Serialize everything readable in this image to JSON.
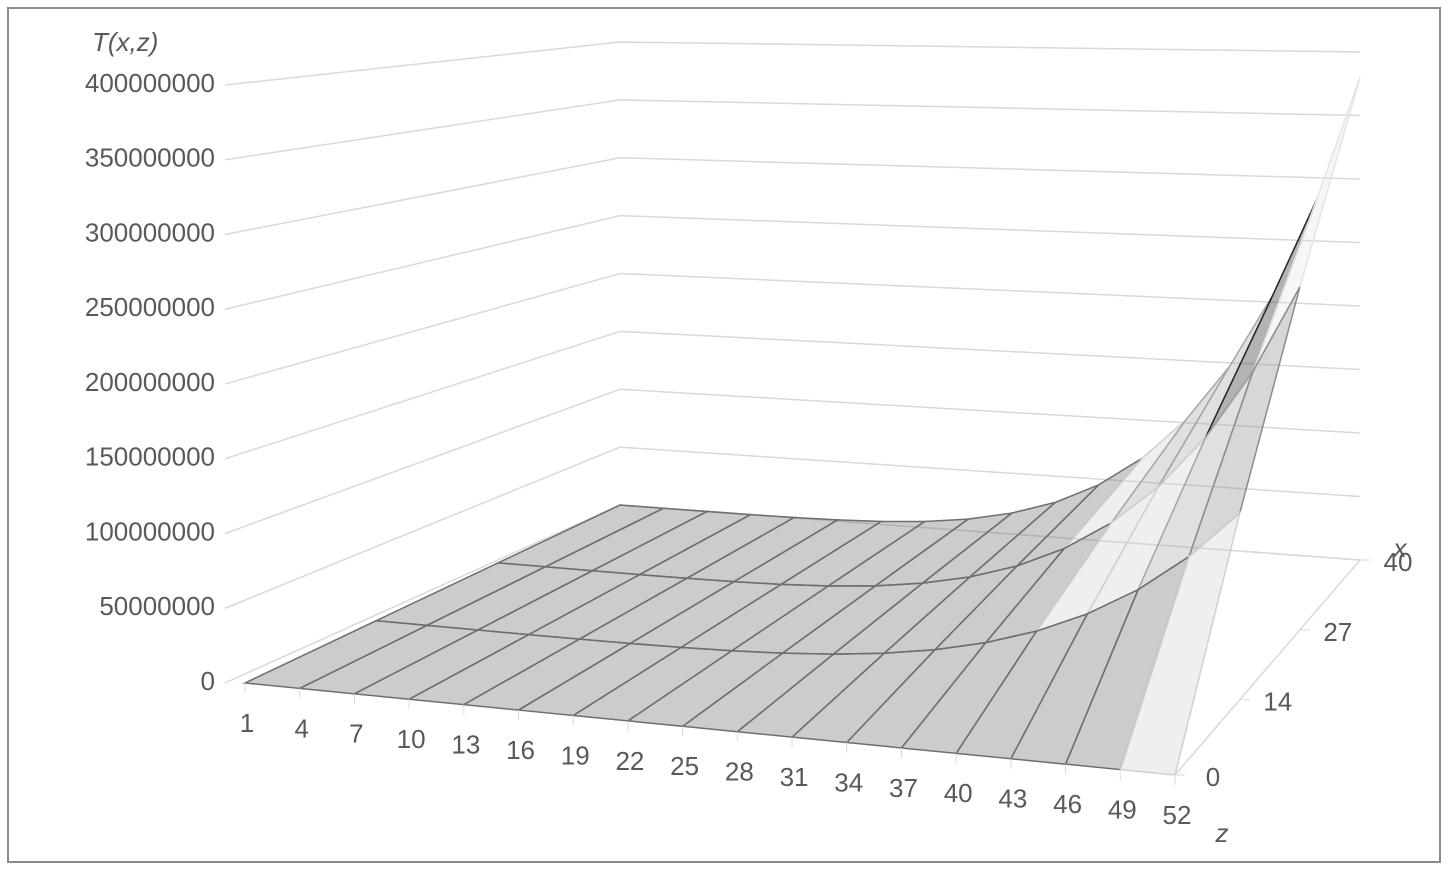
{
  "chart_data": {
    "type": "surface",
    "y_axis_title": "T(x,z)",
    "x_axis_title": "x",
    "z_axis_title": "z",
    "categories": [
      1,
      4,
      7,
      10,
      13,
      16,
      19,
      22,
      25,
      28,
      31,
      34,
      37,
      40,
      43,
      46,
      49,
      52
    ],
    "x": [
      0,
      14,
      27,
      40
    ],
    "xlim": [
      0,
      40
    ],
    "values": [
      [
        0,
        0,
        0,
        0,
        0,
        0,
        0,
        0,
        0,
        0,
        0,
        0,
        0,
        0,
        0,
        0,
        0,
        0
      ],
      [
        0,
        350,
        6000,
        35000,
        130000,
        369000,
        865000,
        1796000,
        3406000,
        6038000,
        10003000,
        15880000,
        24245000,
        35816000,
        51433000,
        72034000,
        98819000,
        133000000
      ],
      [
        0,
        700,
        11500,
        67000,
        251000,
        711000,
        1667000,
        3463000,
        6568000,
        11644000,
        19292000,
        30625000,
        46757000,
        69073000,
        99191000,
        138922000,
        190580000,
        256500000
      ],
      [
        0,
        1000,
        17000,
        99000,
        372000,
        1053000,
        2470000,
        5130000,
        9730000,
        17250000,
        28580000,
        45370000,
        69270000,
        102330000,
        146950000,
        205810000,
        282340000,
        380000000
      ]
    ],
    "ylim": [
      0,
      400000000
    ],
    "yticks": [
      0,
      50000000,
      100000000,
      150000000,
      200000000,
      250000000,
      300000000,
      350000000,
      400000000
    ],
    "band_colors": [
      "#6e6e6e",
      "#d0d0d0",
      "#a6a6a6",
      "#8c8c8c",
      "#262626",
      "#e4e4e4",
      "#b8b8b8",
      "#9a9a9a"
    ],
    "grid": true
  }
}
